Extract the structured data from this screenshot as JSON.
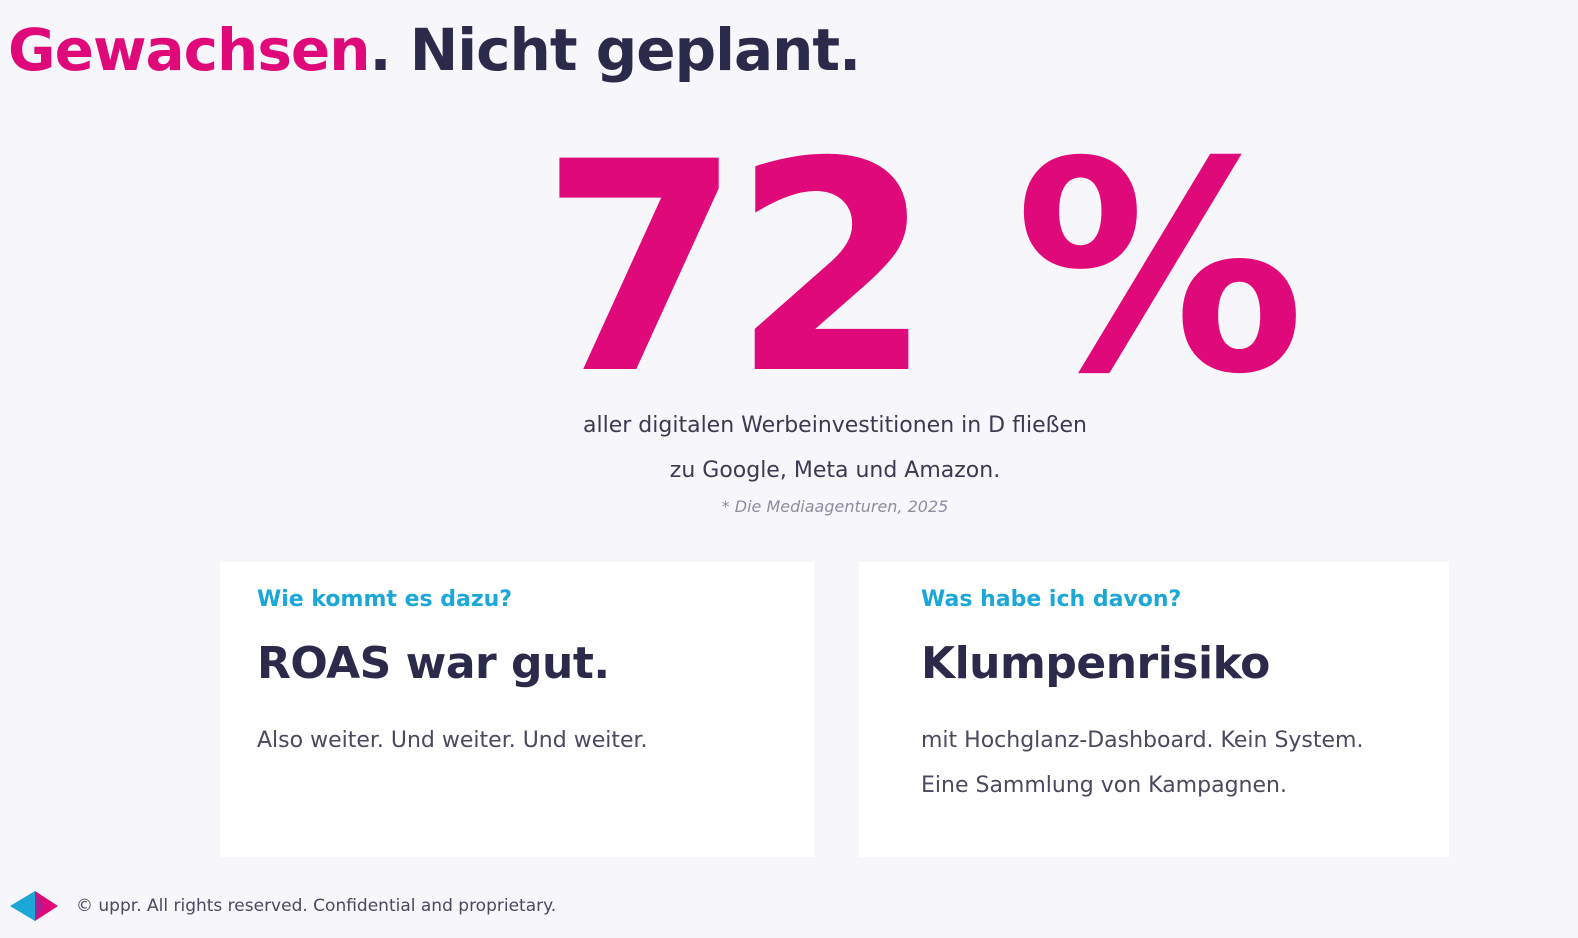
{
  "headline": {
    "accent": "Gewachsen",
    "rest": ". Nicht geplant."
  },
  "stat": {
    "value": "72 %",
    "caption_line1": "aller digitalen Werbeinvestitionen in D  fließen",
    "caption_line2": "zu Google, Meta und Amazon.",
    "source": "*  Die Mediaagenturen, 2025"
  },
  "cards": [
    {
      "kicker": "Wie kommt es dazu?",
      "title": "ROAS war gut.",
      "lines": [
        "Also weiter. Und weiter. Und weiter."
      ]
    },
    {
      "kicker": "Was habe ich davon?",
      "title": "Klumpenrisiko",
      "lines": [
        "mit Hochglanz-Dashboard. Kein System.",
        "Eine Sammlung von Kampagnen."
      ]
    }
  ],
  "footer": {
    "logo_icon": "uppr-logo-icon",
    "text": "© uppr.  All rights reserved. Confidential and proprietary."
  },
  "colors": {
    "accent_pink": "#e0097a",
    "accent_blue": "#1ba7d8",
    "dark_text": "#2c2a4a",
    "background": "#f7f6fa"
  }
}
